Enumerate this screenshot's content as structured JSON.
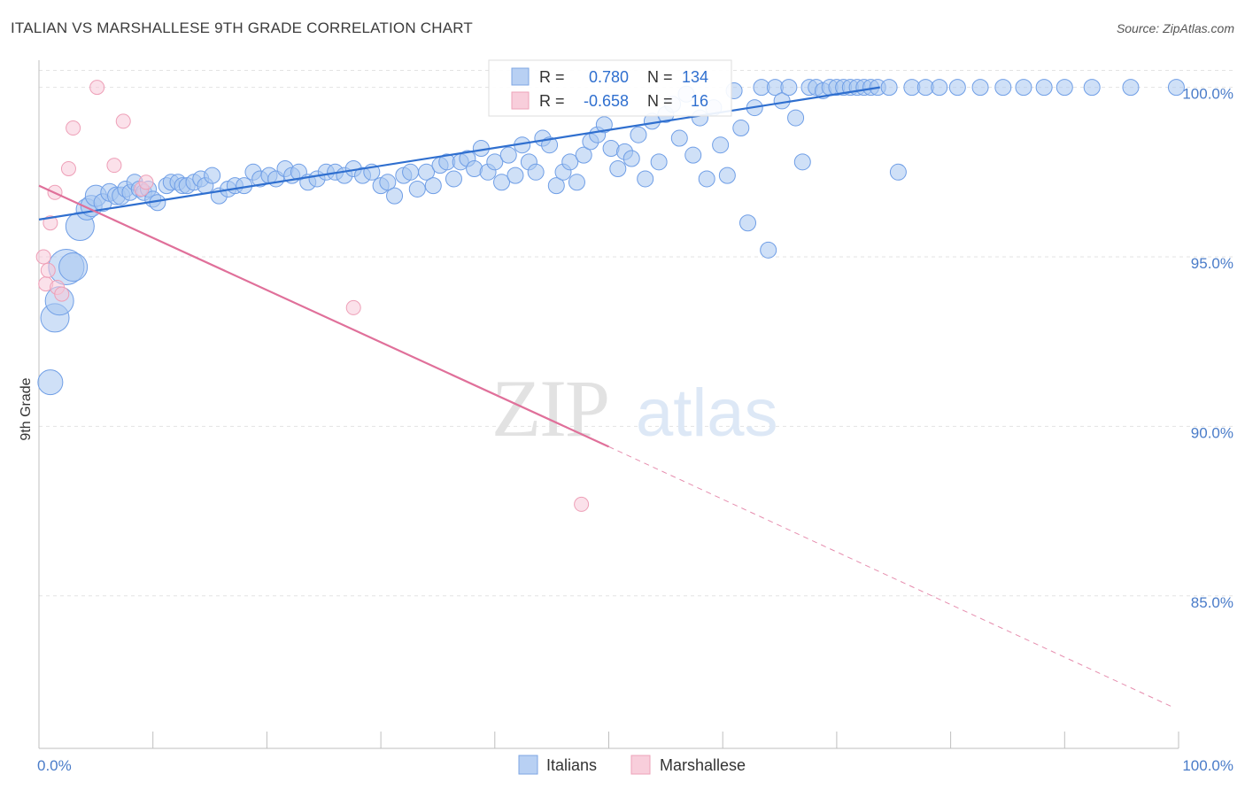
{
  "title": "ITALIAN VS MARSHALLESE 9TH GRADE CORRELATION CHART",
  "source": "Source: ZipAtlas.com",
  "watermark": {
    "zip": "ZIP",
    "atlas": "atlas"
  },
  "chart_data": {
    "type": "scatter",
    "title": "ITALIAN VS MARSHALLESE 9TH GRADE CORRELATION CHART",
    "xlabel": "",
    "ylabel": "9th Grade",
    "xlim": [
      0,
      100
    ],
    "ylim": [
      80.5,
      100.8
    ],
    "x_tick_labels": [
      "0.0%",
      "100.0%"
    ],
    "y_ticks": [
      85,
      90,
      95,
      100
    ],
    "y_tick_labels": [
      "85.0%",
      "90.0%",
      "95.0%",
      "100.0%"
    ],
    "grid": true,
    "legend_position": "top-center",
    "colors": {
      "italians": "#6f9ee6",
      "marshallese": "#f2a6bd",
      "italians_line": "#2f6fcf",
      "marshallese_line": "#e0709a"
    },
    "stats": [
      {
        "r_label": "R =",
        "r_value": "0.780",
        "n_label": "N =",
        "n_value": "134"
      },
      {
        "r_label": "R =",
        "r_value": "-0.658",
        "n_label": "N =",
        "n_value": "16"
      }
    ],
    "series": [
      {
        "name": "Italians",
        "trend": {
          "x": [
            0,
            73.8
          ],
          "y": [
            96.1,
            100.0
          ]
        },
        "points": [
          [
            1.0,
            91.3,
            14
          ],
          [
            1.4,
            93.2,
            16
          ],
          [
            1.8,
            93.7,
            16
          ],
          [
            2.4,
            94.7,
            20
          ],
          [
            3.0,
            94.7,
            16
          ],
          [
            3.6,
            95.9,
            16
          ],
          [
            4.2,
            96.4,
            12
          ],
          [
            4.6,
            96.5,
            12
          ],
          [
            5.0,
            96.8,
            12
          ],
          [
            5.6,
            96.6,
            10
          ],
          [
            6.2,
            96.9,
            10
          ],
          [
            6.8,
            96.8,
            10
          ],
          [
            7.2,
            96.8,
            10
          ],
          [
            7.6,
            97.0,
            9
          ],
          [
            8.0,
            96.9,
            9
          ],
          [
            8.4,
            97.2,
            9
          ],
          [
            8.8,
            97.0,
            9
          ],
          [
            9.2,
            96.9,
            9
          ],
          [
            9.6,
            97.0,
            9
          ],
          [
            10.0,
            96.7,
            9
          ],
          [
            10.4,
            96.6,
            9
          ],
          [
            11.2,
            97.1,
            9
          ],
          [
            11.6,
            97.2,
            9
          ],
          [
            12.2,
            97.2,
            9
          ],
          [
            12.6,
            97.1,
            9
          ],
          [
            13.0,
            97.1,
            9
          ],
          [
            13.6,
            97.2,
            9
          ],
          [
            14.2,
            97.3,
            9
          ],
          [
            14.6,
            97.1,
            9
          ],
          [
            15.2,
            97.4,
            9
          ],
          [
            15.8,
            96.8,
            9
          ],
          [
            16.6,
            97.0,
            9
          ],
          [
            17.2,
            97.1,
            9
          ],
          [
            18.0,
            97.1,
            9
          ],
          [
            18.8,
            97.5,
            9
          ],
          [
            19.4,
            97.3,
            9
          ],
          [
            20.2,
            97.4,
            9
          ],
          [
            20.8,
            97.3,
            9
          ],
          [
            21.6,
            97.6,
            9
          ],
          [
            22.2,
            97.4,
            9
          ],
          [
            22.8,
            97.5,
            9
          ],
          [
            23.6,
            97.2,
            9
          ],
          [
            24.4,
            97.3,
            9
          ],
          [
            25.2,
            97.5,
            9
          ],
          [
            26.0,
            97.5,
            9
          ],
          [
            26.8,
            97.4,
            9
          ],
          [
            27.6,
            97.6,
            9
          ],
          [
            28.4,
            97.4,
            9
          ],
          [
            29.2,
            97.5,
            9
          ],
          [
            30.0,
            97.1,
            9
          ],
          [
            30.6,
            97.2,
            9
          ],
          [
            31.2,
            96.8,
            9
          ],
          [
            32.0,
            97.4,
            9
          ],
          [
            32.6,
            97.5,
            9
          ],
          [
            33.2,
            97.0,
            9
          ],
          [
            34.0,
            97.5,
            9
          ],
          [
            34.6,
            97.1,
            9
          ],
          [
            35.2,
            97.7,
            9
          ],
          [
            35.8,
            97.8,
            9
          ],
          [
            36.4,
            97.3,
            9
          ],
          [
            37.0,
            97.8,
            9
          ],
          [
            37.6,
            97.9,
            9
          ],
          [
            38.2,
            97.6,
            9
          ],
          [
            38.8,
            98.2,
            9
          ],
          [
            39.4,
            97.5,
            9
          ],
          [
            40.0,
            97.8,
            9
          ],
          [
            40.6,
            97.2,
            9
          ],
          [
            41.2,
            98.0,
            9
          ],
          [
            41.8,
            97.4,
            9
          ],
          [
            42.4,
            98.3,
            9
          ],
          [
            43.0,
            97.8,
            9
          ],
          [
            43.6,
            97.5,
            9
          ],
          [
            44.2,
            98.5,
            9
          ],
          [
            44.8,
            98.3,
            9
          ],
          [
            45.4,
            97.1,
            9
          ],
          [
            46.0,
            97.5,
            9
          ],
          [
            46.6,
            97.8,
            9
          ],
          [
            47.2,
            97.2,
            9
          ],
          [
            47.8,
            98.0,
            9
          ],
          [
            48.4,
            98.4,
            9
          ],
          [
            49.0,
            98.6,
            9
          ],
          [
            49.6,
            98.9,
            9
          ],
          [
            50.2,
            98.2,
            9
          ],
          [
            50.8,
            97.6,
            9
          ],
          [
            51.4,
            98.1,
            9
          ],
          [
            52.0,
            97.9,
            9
          ],
          [
            52.6,
            98.6,
            9
          ],
          [
            53.2,
            97.3,
            9
          ],
          [
            53.8,
            99.0,
            9
          ],
          [
            54.4,
            97.8,
            9
          ],
          [
            55.0,
            99.2,
            9
          ],
          [
            55.6,
            99.5,
            9
          ],
          [
            56.2,
            98.5,
            9
          ],
          [
            56.8,
            99.8,
            9
          ],
          [
            57.4,
            98.0,
            9
          ],
          [
            58.0,
            99.1,
            9
          ],
          [
            58.6,
            97.3,
            9
          ],
          [
            59.2,
            99.4,
            9
          ],
          [
            59.8,
            98.3,
            9
          ],
          [
            60.4,
            97.4,
            9
          ],
          [
            61.0,
            99.9,
            9
          ],
          [
            61.6,
            98.8,
            9
          ],
          [
            62.2,
            96.0,
            9
          ],
          [
            62.8,
            99.4,
            9
          ],
          [
            63.4,
            100.0,
            9
          ],
          [
            64.0,
            95.2,
            9
          ],
          [
            64.6,
            100.0,
            9
          ],
          [
            65.2,
            99.6,
            9
          ],
          [
            65.8,
            100.0,
            9
          ],
          [
            66.4,
            99.1,
            9
          ],
          [
            67.0,
            97.8,
            9
          ],
          [
            67.6,
            100.0,
            9
          ],
          [
            68.2,
            100.0,
            9
          ],
          [
            68.8,
            99.9,
            9
          ],
          [
            69.4,
            100.0,
            9
          ],
          [
            70.0,
            100.0,
            9
          ],
          [
            70.6,
            100.0,
            9
          ],
          [
            71.2,
            100.0,
            9
          ],
          [
            71.8,
            100.0,
            9
          ],
          [
            72.4,
            100.0,
            9
          ],
          [
            73.0,
            100.0,
            9
          ],
          [
            73.6,
            100.0,
            9
          ],
          [
            74.6,
            100.0,
            9
          ],
          [
            75.4,
            97.5,
            9
          ],
          [
            76.6,
            100.0,
            9
          ],
          [
            77.8,
            100.0,
            9
          ],
          [
            79.0,
            100.0,
            9
          ],
          [
            80.6,
            100.0,
            9
          ],
          [
            82.6,
            100.0,
            9
          ],
          [
            84.6,
            100.0,
            9
          ],
          [
            86.4,
            100.0,
            9
          ],
          [
            88.2,
            100.0,
            9
          ],
          [
            90.0,
            100.0,
            9
          ],
          [
            92.4,
            100.0,
            9
          ],
          [
            95.8,
            100.0,
            9
          ],
          [
            99.8,
            100.0,
            9
          ]
        ]
      },
      {
        "name": "Marshallese",
        "trend": {
          "x": [
            0,
            50.0
          ],
          "y": [
            97.1,
            89.4
          ]
        },
        "trend_extension": {
          "x": [
            50.0,
            99.6
          ],
          "y": [
            89.4,
            81.7
          ]
        },
        "points": [
          [
            0.4,
            95.0,
            8
          ],
          [
            0.6,
            94.2,
            8
          ],
          [
            0.8,
            94.6,
            8
          ],
          [
            1.0,
            96.0,
            8
          ],
          [
            1.4,
            96.9,
            8
          ],
          [
            1.6,
            94.1,
            8
          ],
          [
            2.0,
            93.9,
            8
          ],
          [
            2.6,
            97.6,
            8
          ],
          [
            3.0,
            98.8,
            8
          ],
          [
            5.1,
            100.0,
            8
          ],
          [
            6.6,
            97.7,
            8
          ],
          [
            7.4,
            99.0,
            8
          ],
          [
            9.0,
            97.0,
            8
          ],
          [
            9.4,
            97.2,
            8
          ],
          [
            27.6,
            93.5,
            8
          ],
          [
            47.6,
            87.7,
            8
          ]
        ]
      }
    ]
  },
  "bottom_legend": [
    "Italians",
    "Marshallese"
  ]
}
